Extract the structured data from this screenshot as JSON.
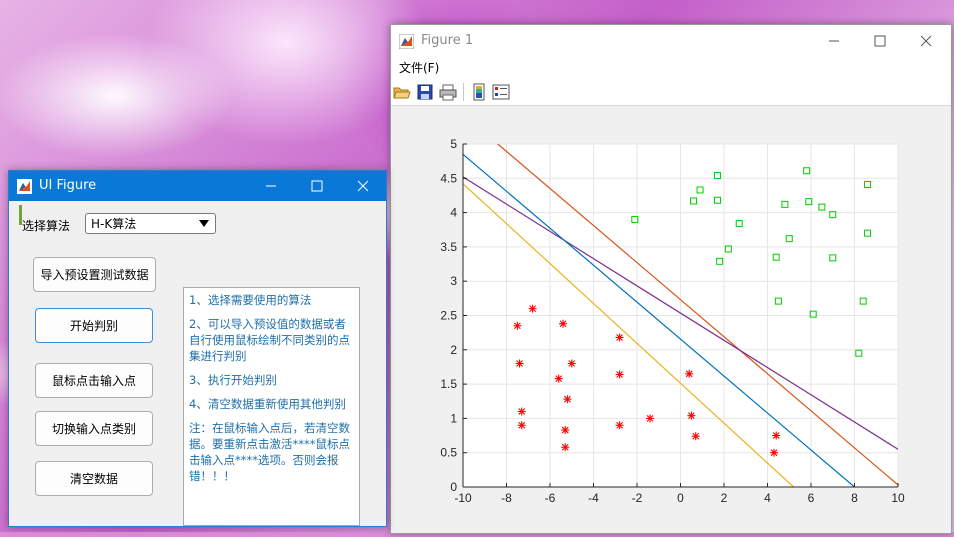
{
  "figure_window": {
    "title": "Figure 1",
    "menu": [
      "文件(F)"
    ],
    "toolbar_icons": [
      "open-folder-icon",
      "save-icon",
      "print-icon",
      "colorbar-icon",
      "legend-icon"
    ]
  },
  "ui_window": {
    "title": "UI Figure",
    "select_label": "选择算法",
    "dropdown_value": "H-K算法",
    "buttons": {
      "load": "导入预设置测试数据",
      "start": "开始判别",
      "mouse_input": "鼠标点击输入点",
      "switch_class": "切换输入点类别",
      "clear": "清空数据"
    },
    "instructions": [
      "1、选择需要使用的算法",
      "2、可以导入预设值的数据或者自行使用鼠标绘制不同类别的点集进行判别",
      "3、执行开始判别",
      "4、清空数据重新使用其他判别",
      "注：在鼠标输入点后，若清空数据。要重新点击激活****鼠标点击输入点****选项。否则会报错！！！"
    ]
  },
  "chart_data": {
    "type": "scatter",
    "xlim": [
      -10,
      10
    ],
    "ylim": [
      0,
      5
    ],
    "xticks": [
      -10,
      -8,
      -6,
      -4,
      -2,
      0,
      2,
      4,
      6,
      8,
      10
    ],
    "yticks": [
      0,
      0.5,
      1,
      1.5,
      2,
      2.5,
      3,
      3.5,
      4,
      4.5,
      5
    ],
    "grid": true,
    "series": [
      {
        "marker": "asterisk",
        "color": "#ff0000",
        "points": [
          [
            -6.8,
            2.6
          ],
          [
            -7.5,
            2.35
          ],
          [
            -5.4,
            2.38
          ],
          [
            -2.8,
            2.18
          ],
          [
            -7.4,
            1.8
          ],
          [
            -5.0,
            1.8
          ],
          [
            -5.6,
            1.58
          ],
          [
            -2.8,
            1.64
          ],
          [
            -5.2,
            1.28
          ],
          [
            -7.3,
            1.1
          ],
          [
            -7.3,
            0.9
          ],
          [
            -5.3,
            0.83
          ],
          [
            -5.3,
            0.58
          ],
          [
            -2.8,
            0.9
          ],
          [
            -1.4,
            1.0
          ],
          [
            0.4,
            1.65
          ],
          [
            0.5,
            1.04
          ],
          [
            0.7,
            0.74
          ],
          [
            4.4,
            0.75
          ],
          [
            4.3,
            0.5
          ]
        ]
      },
      {
        "marker": "square",
        "color": "#00cc00",
        "points": [
          [
            -2.1,
            3.9
          ],
          [
            0.6,
            4.17
          ],
          [
            0.9,
            4.33
          ],
          [
            1.7,
            4.18
          ],
          [
            1.7,
            4.54
          ],
          [
            1.8,
            3.29
          ],
          [
            2.2,
            3.47
          ],
          [
            2.7,
            3.84
          ],
          [
            4.4,
            3.35
          ],
          [
            4.8,
            4.12
          ],
          [
            5.0,
            3.62
          ],
          [
            5.8,
            4.61
          ],
          [
            5.9,
            4.16
          ],
          [
            6.5,
            4.08
          ],
          [
            7.0,
            3.97
          ],
          [
            7.0,
            3.34
          ],
          [
            8.6,
            4.41
          ],
          [
            8.6,
            3.7
          ],
          [
            4.5,
            2.71
          ],
          [
            6.1,
            2.52
          ],
          [
            8.4,
            2.71
          ],
          [
            8.2,
            1.95
          ]
        ]
      }
    ],
    "lines": [
      {
        "color": "#d95319",
        "points": [
          [
            -8.4,
            5
          ],
          [
            10,
            0.03
          ]
        ]
      },
      {
        "color": "#7e2f8e",
        "points": [
          [
            -10,
            4.52
          ],
          [
            10,
            0.55
          ]
        ]
      },
      {
        "color": "#0072bd",
        "points": [
          [
            -10,
            4.85
          ],
          [
            8,
            0
          ]
        ]
      },
      {
        "color": "#edb120",
        "points": [
          [
            -10,
            4.42
          ],
          [
            5.2,
            0
          ]
        ]
      }
    ]
  }
}
